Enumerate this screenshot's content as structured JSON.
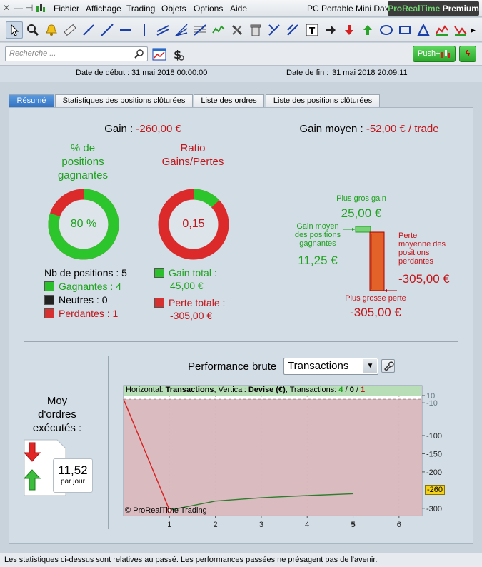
{
  "menu": {
    "items": [
      {
        "label": "Fichier",
        "underline": "F"
      },
      {
        "label": "Affichage",
        "underline": "A"
      },
      {
        "label": "Trading",
        "underline": "T"
      },
      {
        "label": "Objets",
        "underline": "O"
      },
      {
        "label": "Options",
        "underline": "p"
      },
      {
        "label": "Aide",
        "underline": "d"
      }
    ],
    "window_title": "PC Portable Mini Dax",
    "brand_pre": "ProRealTime",
    "brand_post": "Premium"
  },
  "search": {
    "placeholder": "Recherche ..."
  },
  "push_button": {
    "label": "Push+"
  },
  "dates": {
    "start_label": "Date de début :",
    "start_value": "31 mai 2018 00:00:00",
    "end_label": "Date de fin :",
    "end_value": "31 mai 2018 20:09:11"
  },
  "tabs": [
    "Résumé",
    "Statistiques des positions clôturées",
    "Liste des ordres",
    "Liste des positions clôturées"
  ],
  "summary": {
    "gain_label": "Gain :",
    "gain_value": "-260,00 €",
    "pct_title_1": "% de",
    "pct_title_2": "positions",
    "pct_title_3": "gagnantes",
    "pct_value": "80 %",
    "pct_fraction": 0.8,
    "ratio_title_1": "Ratio",
    "ratio_title_2": "Gains/Pertes",
    "ratio_value": "0,15",
    "ratio_fraction": 0.13,
    "nb_positions": "Nb de positions : 5",
    "gagnantes": "Gagnantes : 4",
    "neutres": "Neutres : 0",
    "perdantes": "Perdantes : 1",
    "gain_total_label": "Gain total :",
    "gain_total_value": "45,00 €",
    "perte_totale_label": "Perte totale :",
    "perte_totale_value": "-305,00 €"
  },
  "avg": {
    "gain_moyen_label": "Gain moyen :",
    "gain_moyen_value": "-52,00 € / trade",
    "plus_gros_gain_label": "Plus gros gain",
    "plus_gros_gain_value": "25,00 €",
    "gain_moyen_pos_label_1": "Gain moyen",
    "gain_moyen_pos_label_2": "des positions",
    "gain_moyen_pos_label_3": "gagnantes",
    "gain_moyen_pos_value": "11,25 €",
    "perte_moyenne_label_1": "Perte",
    "perte_moyenne_label_2": "moyenne des",
    "perte_moyenne_label_3": "positions",
    "perte_moyenne_label_4": "perdantes",
    "perte_moyenne_value": "-305,00 €",
    "plus_grosse_perte_label": "Plus grosse perte",
    "plus_grosse_perte_value": "-305,00 €"
  },
  "orders": {
    "title_1": "Moy",
    "title_2": "d'ordres",
    "title_3": "exécutés :",
    "value": "11,52",
    "unit": "par jour"
  },
  "performance": {
    "title": "Performance brute",
    "select_value": "Transactions",
    "header_h_label": "Horizontal:",
    "header_h_value": "Transactions",
    "header_v_label": "Vertical:",
    "header_v_value": "Devise (€)",
    "header_t_label": "Transactions:",
    "header_t_win": "4",
    "header_t_neu": "0",
    "header_t_los": "1",
    "watermark": "© ProRealTime Trading",
    "last_value_label": "-260"
  },
  "chart_data": {
    "type": "line",
    "x": [
      0,
      1,
      2,
      3,
      4,
      5
    ],
    "series": [
      {
        "name": "",
        "values": [
          0,
          -305,
          -280,
          -271,
          -265,
          -260
        ]
      }
    ],
    "x_ticks": [
      "1",
      "2",
      "3",
      "4",
      "5",
      "6"
    ],
    "y_ticks": [
      "10",
      "-10",
      "-100",
      "-150",
      "-200",
      "-260",
      "-300"
    ],
    "ylim": [
      -320,
      10
    ],
    "xlim": [
      0,
      6.5
    ],
    "colors": {
      "loss_area": "#d8b7bd",
      "gain_line": "#2e7d2e",
      "loss_line": "#d62020"
    }
  },
  "status": {
    "text": "Les statistiques ci-dessus sont relatives au passé. Les performances passées ne présagent pas de l'avenir."
  },
  "colors": {
    "green": "#1fa21f",
    "red": "#c0171b",
    "accent_tab": "#3a7fd0"
  }
}
